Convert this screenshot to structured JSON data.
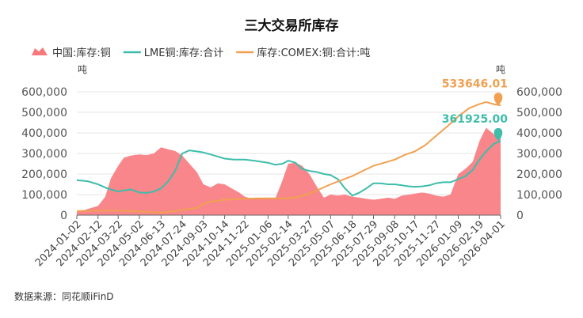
{
  "chart_data": {
    "type": "area",
    "title": "三大交易所库存",
    "source": "数据来源：同花顺iFinD",
    "unit_left": "吨",
    "unit_right": "吨",
    "x_dates": [
      "2024-01-02",
      "2024-02-12",
      "2024-03-22",
      "2024-05-02",
      "2024-06-13",
      "2024-07-24",
      "2024-09-03",
      "2024-10-14",
      "2024-11-22",
      "2025-01-06",
      "2025-02-14",
      "2025-03-27",
      "2025-05-07",
      "2025-06-18",
      "2025-07-29",
      "2025-09-08",
      "2025-10-17",
      "2025-11-27",
      "2026-01-09",
      "2026-02-19",
      "2026-04-01"
    ],
    "x_range": [
      "2024-01-02",
      "2026-04-01"
    ],
    "y_left": {
      "ylim": [
        0,
        600000
      ],
      "ticks": [
        "0",
        "100,000",
        "200,000",
        "300,000",
        "400,000",
        "500,000",
        "600,000"
      ]
    },
    "y_right": {
      "ylim": [
        0,
        600000
      ],
      "ticks": [
        "0",
        "100,000",
        "200,000",
        "300,000",
        "400,000",
        "500,000",
        "600,000"
      ]
    },
    "grid": true,
    "legend_position": "top-left",
    "series": [
      {
        "name": "中国:库存:铜",
        "kind": "area",
        "color": "#f7797d",
        "axis": "left",
        "points": [
          [
            "2024-01-02",
            15000
          ],
          [
            "2024-01-23",
            30000
          ],
          [
            "2024-02-12",
            45000
          ],
          [
            "2024-02-26",
            90000
          ],
          [
            "2024-03-08",
            180000
          ],
          [
            "2024-03-22",
            240000
          ],
          [
            "2024-04-02",
            280000
          ],
          [
            "2024-04-16",
            290000
          ],
          [
            "2024-05-02",
            295000
          ],
          [
            "2024-05-16",
            292000
          ],
          [
            "2024-05-30",
            300000
          ],
          [
            "2024-06-13",
            330000
          ],
          [
            "2024-06-27",
            320000
          ],
          [
            "2024-07-10",
            312000
          ],
          [
            "2024-07-24",
            290000
          ],
          [
            "2024-08-07",
            250000
          ],
          [
            "2024-08-21",
            210000
          ],
          [
            "2024-09-03",
            150000
          ],
          [
            "2024-09-17",
            135000
          ],
          [
            "2024-10-01",
            155000
          ],
          [
            "2024-10-14",
            150000
          ],
          [
            "2024-10-28",
            130000
          ],
          [
            "2024-11-11",
            110000
          ],
          [
            "2024-11-22",
            90000
          ],
          [
            "2024-12-06",
            80000
          ],
          [
            "2024-12-20",
            80000
          ],
          [
            "2025-01-06",
            85000
          ],
          [
            "2025-01-20",
            80000
          ],
          [
            "2025-02-03",
            170000
          ],
          [
            "2025-02-14",
            250000
          ],
          [
            "2025-02-28",
            255000
          ],
          [
            "2025-03-13",
            240000
          ],
          [
            "2025-03-27",
            200000
          ],
          [
            "2025-04-10",
            140000
          ],
          [
            "2025-04-24",
            85000
          ],
          [
            "2025-05-07",
            100000
          ],
          [
            "2025-05-21",
            95000
          ],
          [
            "2025-06-04",
            100000
          ],
          [
            "2025-06-18",
            90000
          ],
          [
            "2025-07-02",
            85000
          ],
          [
            "2025-07-15",
            80000
          ],
          [
            "2025-07-29",
            75000
          ],
          [
            "2025-08-12",
            80000
          ],
          [
            "2025-08-26",
            85000
          ],
          [
            "2025-09-08",
            80000
          ],
          [
            "2025-09-22",
            95000
          ],
          [
            "2025-10-06",
            100000
          ],
          [
            "2025-10-17",
            105000
          ],
          [
            "2025-10-31",
            110000
          ],
          [
            "2025-11-14",
            105000
          ],
          [
            "2025-11-27",
            95000
          ],
          [
            "2025-12-11",
            90000
          ],
          [
            "2025-12-25",
            100000
          ],
          [
            "2026-01-09",
            200000
          ],
          [
            "2026-01-23",
            225000
          ],
          [
            "2026-02-06",
            260000
          ],
          [
            "2026-02-19",
            360000
          ],
          [
            "2026-03-04",
            425000
          ],
          [
            "2026-03-18",
            395000
          ],
          [
            "2026-04-01",
            375000
          ]
        ]
      },
      {
        "name": "LME铜:库存:合计",
        "kind": "line",
        "color": "#3dbdaa",
        "axis": "left",
        "last_label": "361925.00",
        "points": [
          [
            "2024-01-02",
            170000
          ],
          [
            "2024-01-23",
            165000
          ],
          [
            "2024-02-12",
            150000
          ],
          [
            "2024-03-01",
            130000
          ],
          [
            "2024-03-22",
            115000
          ],
          [
            "2024-04-02",
            120000
          ],
          [
            "2024-04-16",
            125000
          ],
          [
            "2024-05-02",
            110000
          ],
          [
            "2024-05-16",
            108000
          ],
          [
            "2024-05-30",
            115000
          ],
          [
            "2024-06-13",
            130000
          ],
          [
            "2024-06-27",
            165000
          ],
          [
            "2024-07-10",
            215000
          ],
          [
            "2024-07-24",
            300000
          ],
          [
            "2024-08-07",
            315000
          ],
          [
            "2024-08-21",
            310000
          ],
          [
            "2024-09-03",
            305000
          ],
          [
            "2024-09-17",
            295000
          ],
          [
            "2024-10-01",
            285000
          ],
          [
            "2024-10-14",
            275000
          ],
          [
            "2024-11-01",
            270000
          ],
          [
            "2024-11-22",
            270000
          ],
          [
            "2024-12-10",
            265000
          ],
          [
            "2025-01-06",
            255000
          ],
          [
            "2025-01-20",
            245000
          ],
          [
            "2025-02-03",
            250000
          ],
          [
            "2025-02-14",
            265000
          ],
          [
            "2025-02-28",
            255000
          ],
          [
            "2025-03-13",
            225000
          ],
          [
            "2025-03-27",
            215000
          ],
          [
            "2025-04-10",
            210000
          ],
          [
            "2025-04-24",
            200000
          ],
          [
            "2025-05-07",
            195000
          ],
          [
            "2025-05-21",
            175000
          ],
          [
            "2025-06-04",
            130000
          ],
          [
            "2025-06-18",
            95000
          ],
          [
            "2025-07-02",
            110000
          ],
          [
            "2025-07-15",
            130000
          ],
          [
            "2025-07-29",
            155000
          ],
          [
            "2025-08-12",
            155000
          ],
          [
            "2025-08-26",
            150000
          ],
          [
            "2025-09-08",
            150000
          ],
          [
            "2025-09-22",
            145000
          ],
          [
            "2025-10-06",
            140000
          ],
          [
            "2025-10-17",
            138000
          ],
          [
            "2025-10-31",
            140000
          ],
          [
            "2025-11-14",
            145000
          ],
          [
            "2025-11-27",
            155000
          ],
          [
            "2025-12-11",
            160000
          ],
          [
            "2025-12-25",
            160000
          ],
          [
            "2026-01-09",
            175000
          ],
          [
            "2026-01-23",
            190000
          ],
          [
            "2026-02-06",
            220000
          ],
          [
            "2026-02-19",
            270000
          ],
          [
            "2026-03-04",
            310000
          ],
          [
            "2026-03-18",
            345000
          ],
          [
            "2026-04-01",
            361925
          ]
        ]
      },
      {
        "name": "库存:COMEX:铜:合计:吨",
        "kind": "line",
        "color": "#f0a050",
        "axis": "right",
        "last_label": "533646.01",
        "points": [
          [
            "2024-01-02",
            20000
          ],
          [
            "2024-02-12",
            22000
          ],
          [
            "2024-03-22",
            22000
          ],
          [
            "2024-05-02",
            18000
          ],
          [
            "2024-06-13",
            12000
          ],
          [
            "2024-07-24",
            25000
          ],
          [
            "2024-08-21",
            35000
          ],
          [
            "2024-09-03",
            55000
          ],
          [
            "2024-09-17",
            65000
          ],
          [
            "2024-10-14",
            75000
          ],
          [
            "2024-11-22",
            80000
          ],
          [
            "2024-12-20",
            82000
          ],
          [
            "2025-01-06",
            82000
          ],
          [
            "2025-02-14",
            82000
          ],
          [
            "2025-03-06",
            88000
          ],
          [
            "2025-03-27",
            105000
          ],
          [
            "2025-04-15",
            125000
          ],
          [
            "2025-05-07",
            150000
          ],
          [
            "2025-05-28",
            170000
          ],
          [
            "2025-06-18",
            190000
          ],
          [
            "2025-07-08",
            215000
          ],
          [
            "2025-07-29",
            240000
          ],
          [
            "2025-08-19",
            255000
          ],
          [
            "2025-09-08",
            270000
          ],
          [
            "2025-09-29",
            295000
          ],
          [
            "2025-10-17",
            310000
          ],
          [
            "2025-11-06",
            340000
          ],
          [
            "2025-11-27",
            385000
          ],
          [
            "2025-12-18",
            430000
          ],
          [
            "2026-01-09",
            480000
          ],
          [
            "2026-01-30",
            520000
          ],
          [
            "2026-02-19",
            540000
          ],
          [
            "2026-03-04",
            550000
          ],
          [
            "2026-03-18",
            540000
          ],
          [
            "2026-04-01",
            533646
          ]
        ]
      }
    ]
  }
}
